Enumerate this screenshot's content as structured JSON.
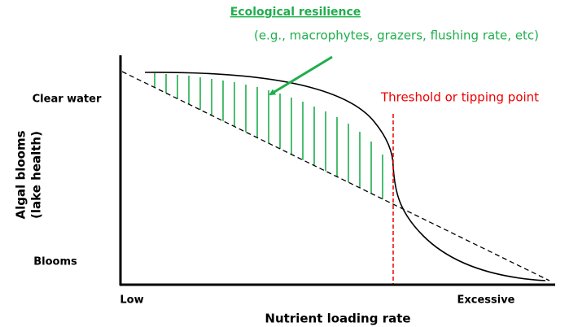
{
  "annotation": {
    "title": "Ecological resilience",
    "detail": "(e.g., macrophytes, grazers, flushing rate, etc)"
  },
  "threshold": "Threshold or tipping point",
  "y_axis": {
    "label_line1": "Algal blooms",
    "label_line2": "(lake health)",
    "top": "Clear water",
    "bottom": "Blooms"
  },
  "x_axis": {
    "label": "Nutrient loading rate",
    "left": "Low",
    "right": "Excessive"
  }
}
